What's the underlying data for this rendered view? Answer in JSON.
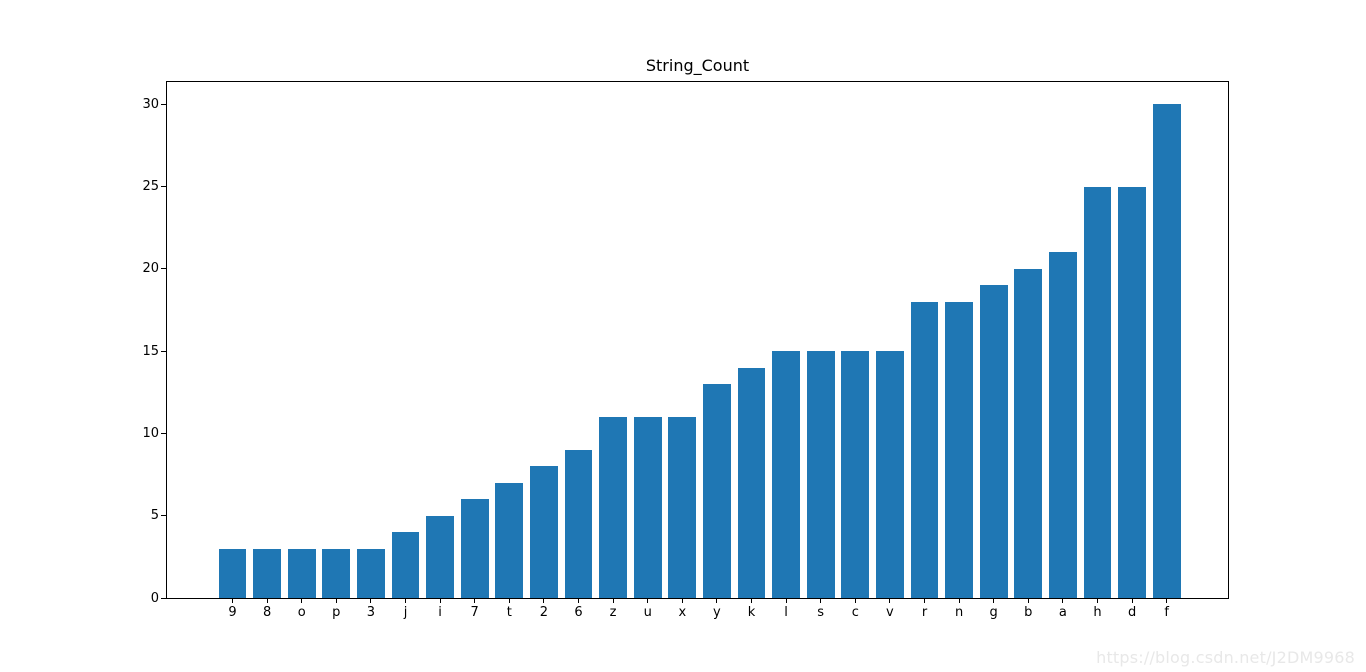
{
  "chart_data": {
    "type": "bar",
    "title": "String_Count",
    "xlabel": "",
    "ylabel": "",
    "categories": [
      "9",
      "8",
      "o",
      "p",
      "3",
      "j",
      "i",
      "7",
      "t",
      "2",
      "6",
      "z",
      "u",
      "x",
      "y",
      "k",
      "l",
      "s",
      "c",
      "v",
      "r",
      "n",
      "g",
      "b",
      "a",
      "h",
      "d",
      "f"
    ],
    "values": [
      3,
      3,
      3,
      3,
      3,
      4,
      5,
      6,
      7,
      8,
      9,
      11,
      11,
      11,
      13,
      14,
      15,
      15,
      15,
      15,
      18,
      18,
      19,
      20,
      21,
      25,
      25,
      30
    ],
    "yticks": [
      0,
      5,
      10,
      15,
      20,
      25,
      30
    ],
    "ylim": [
      0,
      31.35
    ],
    "grid": false,
    "legend": "none",
    "bar_color": "#1f77b4",
    "frame_color": "#000000"
  },
  "watermark": {
    "text": "https://blog.csdn.net/J2DM9968"
  }
}
